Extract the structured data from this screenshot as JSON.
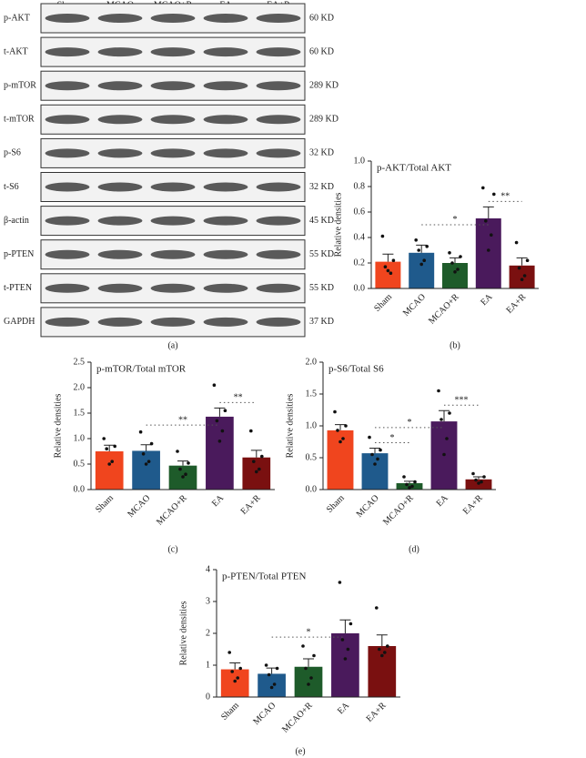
{
  "blot": {
    "lanes": [
      "Sham",
      "MCAO",
      "MCAO+R",
      "EA",
      "EA+R"
    ],
    "rows": [
      {
        "label": "p-AKT",
        "size": "60 KD"
      },
      {
        "label": "t-AKT",
        "size": "60 KD"
      },
      {
        "label": "p-mTOR",
        "size": "289 KD"
      },
      {
        "label": "t-mTOR",
        "size": "289 KD"
      },
      {
        "label": "p-S6",
        "size": "32 KD"
      },
      {
        "label": "t-S6",
        "size": "32 KD"
      },
      {
        "label": "β-actin",
        "size": "45 KD"
      },
      {
        "label": "p-PTEN",
        "size": "55 KD"
      },
      {
        "label": "t-PTEN",
        "size": "55 KD"
      },
      {
        "label": "GAPDH",
        "size": "37 KD"
      }
    ],
    "panel_label": "(a)"
  },
  "chart_data": [
    {
      "type": "bar",
      "title": "p-AKT/Total AKT",
      "y_label": "Relative densities",
      "panel_label": "(b)",
      "categories": [
        "Sham",
        "MCAO",
        "MCAO+R",
        "EA",
        "EA+R"
      ],
      "colors": [
        "#f0451e",
        "#1f5a8c",
        "#1e5b2a",
        "#4a1a5c",
        "#7a1010"
      ],
      "values": [
        0.21,
        0.28,
        0.2,
        0.55,
        0.18
      ],
      "errors": [
        0.06,
        0.06,
        0.04,
        0.09,
        0.06
      ],
      "points": [
        [
          0.41,
          0.22,
          0.17,
          0.12,
          0.14
        ],
        [
          0.38,
          0.33,
          0.3,
          0.22,
          0.19
        ],
        [
          0.28,
          0.25,
          0.2,
          0.15,
          0.13
        ],
        [
          0.79,
          0.74,
          0.53,
          0.42,
          0.3
        ],
        [
          0.36,
          0.22,
          0.16,
          0.1,
          0.07
        ]
      ],
      "annotations": [
        {
          "text": "*",
          "between": [
            1,
            3
          ]
        },
        {
          "text": "**",
          "between": [
            3,
            4
          ]
        }
      ],
      "ylim": [
        0,
        1
      ],
      "yticks": [
        {
          "value": 0,
          "label": "0.0"
        },
        0.2,
        0.4,
        0.6,
        0.8,
        {
          "value": 1,
          "label": "1.0"
        }
      ]
    },
    {
      "type": "bar",
      "title": "p-mTOR/Total mTOR",
      "y_label": "Relative densities",
      "panel_label": "(c)",
      "categories": [
        "Sham",
        "MCAO",
        "MCAO+R",
        "EA",
        "EA+R"
      ],
      "colors": [
        "#f0451e",
        "#1f5a8c",
        "#1e5b2a",
        "#4a1a5c",
        "#7a1010"
      ],
      "values": [
        0.75,
        0.76,
        0.47,
        1.43,
        0.63
      ],
      "errors": [
        0.12,
        0.12,
        0.09,
        0.17,
        0.14
      ],
      "points": [
        [
          1.0,
          0.85,
          0.8,
          0.55,
          0.5
        ],
        [
          1.13,
          0.9,
          0.7,
          0.55,
          0.5
        ],
        [
          0.75,
          0.52,
          0.4,
          0.3,
          0.25
        ],
        [
          2.05,
          1.55,
          1.35,
          1.15,
          0.95
        ],
        [
          1.15,
          0.65,
          0.55,
          0.4,
          0.35
        ]
      ],
      "annotations": [
        {
          "text": "**",
          "between": [
            1,
            3
          ]
        },
        {
          "text": "**",
          "between": [
            3,
            4
          ]
        }
      ],
      "ylim": [
        0,
        2.5
      ],
      "yticks": [
        {
          "value": 0,
          "label": "0.0"
        },
        0.5,
        {
          "value": 1,
          "label": "1.0"
        },
        1.5,
        {
          "value": 2,
          "label": "2.0"
        },
        2.5
      ]
    },
    {
      "type": "bar",
      "title": "p-S6/Total S6",
      "y_label": "Relative densities",
      "panel_label": "(d)",
      "categories": [
        "Sham",
        "MCAO",
        "MCAO+R",
        "EA",
        "EA+R"
      ],
      "colors": [
        "#f0451e",
        "#1f5a8c",
        "#1e5b2a",
        "#4a1a5c",
        "#7a1010"
      ],
      "values": [
        0.93,
        0.57,
        0.1,
        1.07,
        0.16
      ],
      "errors": [
        0.09,
        0.08,
        0.03,
        0.17,
        0.04
      ],
      "points": [
        [
          1.22,
          1.0,
          0.93,
          0.8,
          0.75
        ],
        [
          0.82,
          0.62,
          0.55,
          0.48,
          0.4
        ],
        [
          0.2,
          0.12,
          0.08,
          0.05,
          0.03
        ],
        [
          1.55,
          1.2,
          1.1,
          0.8,
          0.55
        ],
        [
          0.25,
          0.2,
          0.15,
          0.12,
          0.1
        ]
      ],
      "annotations": [
        {
          "text": "*",
          "between": [
            1,
            3
          ]
        },
        {
          "text": "*",
          "between": [
            1,
            2
          ]
        },
        {
          "text": "***",
          "between": [
            3,
            4
          ]
        }
      ],
      "ylim": [
        0,
        2
      ],
      "yticks": [
        {
          "value": 0,
          "label": "0.0"
        },
        0.5,
        {
          "value": 1,
          "label": "1.0"
        },
        1.5,
        {
          "value": 2,
          "label": "2.0"
        }
      ]
    },
    {
      "type": "bar",
      "title": "p-PTEN/Total PTEN",
      "y_label": "Relative densities",
      "panel_label": "(e)",
      "categories": [
        "Sham",
        "MCAO",
        "MCAO+R",
        "EA",
        "EA+R"
      ],
      "colors": [
        "#f0451e",
        "#1f5a8c",
        "#1e5b2a",
        "#4a1a5c",
        "#7a1010"
      ],
      "values": [
        0.87,
        0.73,
        0.95,
        2.0,
        1.6
      ],
      "errors": [
        0.2,
        0.18,
        0.25,
        0.42,
        0.35
      ],
      "points": [
        [
          1.4,
          0.9,
          0.8,
          0.6,
          0.5
        ],
        [
          1.0,
          0.9,
          0.7,
          0.4,
          0.3
        ],
        [
          1.6,
          1.3,
          0.9,
          0.6,
          0.4
        ],
        [
          3.6,
          2.3,
          1.8,
          1.5,
          1.2
        ],
        [
          2.8,
          1.6,
          1.5,
          1.4,
          1.3
        ]
      ],
      "annotations": [
        {
          "text": "*",
          "between": [
            1,
            3
          ]
        }
      ],
      "ylim": [
        0,
        4
      ],
      "yticks": [
        0,
        1,
        2,
        3,
        4
      ]
    }
  ]
}
